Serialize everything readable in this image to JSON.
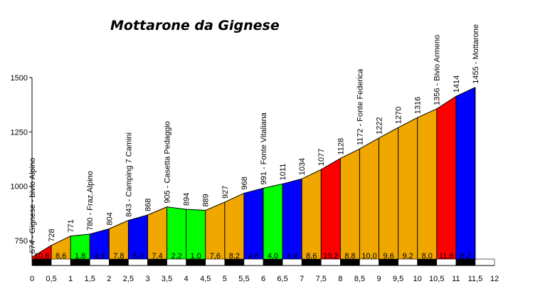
{
  "chart_data": {
    "type": "area",
    "title": "Mottarone da Gignese",
    "xlabel": "",
    "ylabel": "",
    "xlim": [
      0,
      12
    ],
    "ylim": [
      640,
      1500
    ],
    "yticks": [
      750,
      1000,
      1250,
      1500
    ],
    "xticks": [
      "0",
      "0,5",
      "1",
      "1,5",
      "2",
      "2,5",
      "3",
      "3,5",
      "4",
      "4,5",
      "5",
      "5,5",
      "6",
      "6,5",
      "7",
      "7,5",
      "8",
      "8,5",
      "9",
      "9,5",
      "10",
      "10,5",
      "11",
      "11,5",
      "12"
    ],
    "points": [
      {
        "x": 0,
        "y": 674,
        "label": "674 - Gignese - bivio Alpino"
      },
      {
        "x": 0.5,
        "y": 728,
        "label": "728"
      },
      {
        "x": 1,
        "y": 771,
        "label": "771"
      },
      {
        "x": 1.5,
        "y": 780,
        "label": "780 - Fraz.Alpino"
      },
      {
        "x": 2,
        "y": 804,
        "label": "804"
      },
      {
        "x": 2.5,
        "y": 843,
        "label": "843 - Camping 7 Camini"
      },
      {
        "x": 3,
        "y": 868,
        "label": "868"
      },
      {
        "x": 3.5,
        "y": 905,
        "label": "905 - Casetta Pedaggio"
      },
      {
        "x": 4,
        "y": 894,
        "label": "894"
      },
      {
        "x": 4.5,
        "y": 889,
        "label": "889"
      },
      {
        "x": 5,
        "y": 927,
        "label": "927"
      },
      {
        "x": 5.5,
        "y": 968,
        "label": "968"
      },
      {
        "x": 6,
        "y": 991,
        "label": "991 - Fonte Vitaliana"
      },
      {
        "x": 6.5,
        "y": 1011,
        "label": "1011"
      },
      {
        "x": 7,
        "y": 1034,
        "label": "1034"
      },
      {
        "x": 7.5,
        "y": 1077,
        "label": "1077"
      },
      {
        "x": 8,
        "y": 1128,
        "label": "1128"
      },
      {
        "x": 8.5,
        "y": 1172,
        "label": "1172 - Fonte Federica"
      },
      {
        "x": 9,
        "y": 1222,
        "label": "1222"
      },
      {
        "x": 9.5,
        "y": 1270,
        "label": "1270"
      },
      {
        "x": 10,
        "y": 1316,
        "label": "1316"
      },
      {
        "x": 10.5,
        "y": 1356,
        "label": "1356 - Bivio Armeno"
      },
      {
        "x": 11,
        "y": 1414,
        "label": "1414"
      },
      {
        "x": 11.5,
        "y": 1455,
        "label": "1455 - Mottarone"
      }
    ],
    "segments": [
      {
        "from": 0,
        "to": 0.5,
        "gradient": "10,8",
        "color": "#ff0000"
      },
      {
        "from": 0.5,
        "to": 1,
        "gradient": "8,6",
        "color": "#f0a800"
      },
      {
        "from": 1,
        "to": 1.5,
        "gradient": "1,8",
        "color": "#00ff00"
      },
      {
        "from": 1.5,
        "to": 2,
        "gradient": "4,8",
        "color": "#0000ff"
      },
      {
        "from": 2,
        "to": 2.5,
        "gradient": "7,8",
        "color": "#f0a800"
      },
      {
        "from": 2.5,
        "to": 3,
        "gradient": "5,0",
        "color": "#0000ff"
      },
      {
        "from": 3,
        "to": 3.5,
        "gradient": "7,4",
        "color": "#f0a800"
      },
      {
        "from": 3.5,
        "to": 4,
        "gradient": "2,2",
        "color": "#00ff00"
      },
      {
        "from": 4,
        "to": 4.5,
        "gradient": "1,0",
        "color": "#00ff00"
      },
      {
        "from": 4.5,
        "to": 5,
        "gradient": "7,6",
        "color": "#f0a800"
      },
      {
        "from": 5,
        "to": 5.5,
        "gradient": "8,2",
        "color": "#f0a800"
      },
      {
        "from": 5.5,
        "to": 6,
        "gradient": "4,6",
        "color": "#0000ff"
      },
      {
        "from": 6,
        "to": 6.5,
        "gradient": "4,0",
        "color": "#00ff00"
      },
      {
        "from": 6.5,
        "to": 7,
        "gradient": "4,6",
        "color": "#0000ff"
      },
      {
        "from": 7,
        "to": 7.5,
        "gradient": "8,6",
        "color": "#f0a800"
      },
      {
        "from": 7.5,
        "to": 8,
        "gradient": "10,2",
        "color": "#ff0000"
      },
      {
        "from": 8,
        "to": 8.5,
        "gradient": "8,8",
        "color": "#f0a800"
      },
      {
        "from": 8.5,
        "to": 9,
        "gradient": "10,0",
        "color": "#f0a800"
      },
      {
        "from": 9,
        "to": 9.5,
        "gradient": "9,6",
        "color": "#f0a800"
      },
      {
        "from": 9.5,
        "to": 10,
        "gradient": "9,2",
        "color": "#f0a800"
      },
      {
        "from": 10,
        "to": 10.5,
        "gradient": "8,0",
        "color": "#f0a800"
      },
      {
        "from": 10.5,
        "to": 11,
        "gradient": "11,6",
        "color": "#ff0000"
      },
      {
        "from": 11,
        "to": 11.5,
        "gradient": "8,2",
        "color": "#0000ff"
      }
    ],
    "grid": false,
    "legend": "none"
  }
}
